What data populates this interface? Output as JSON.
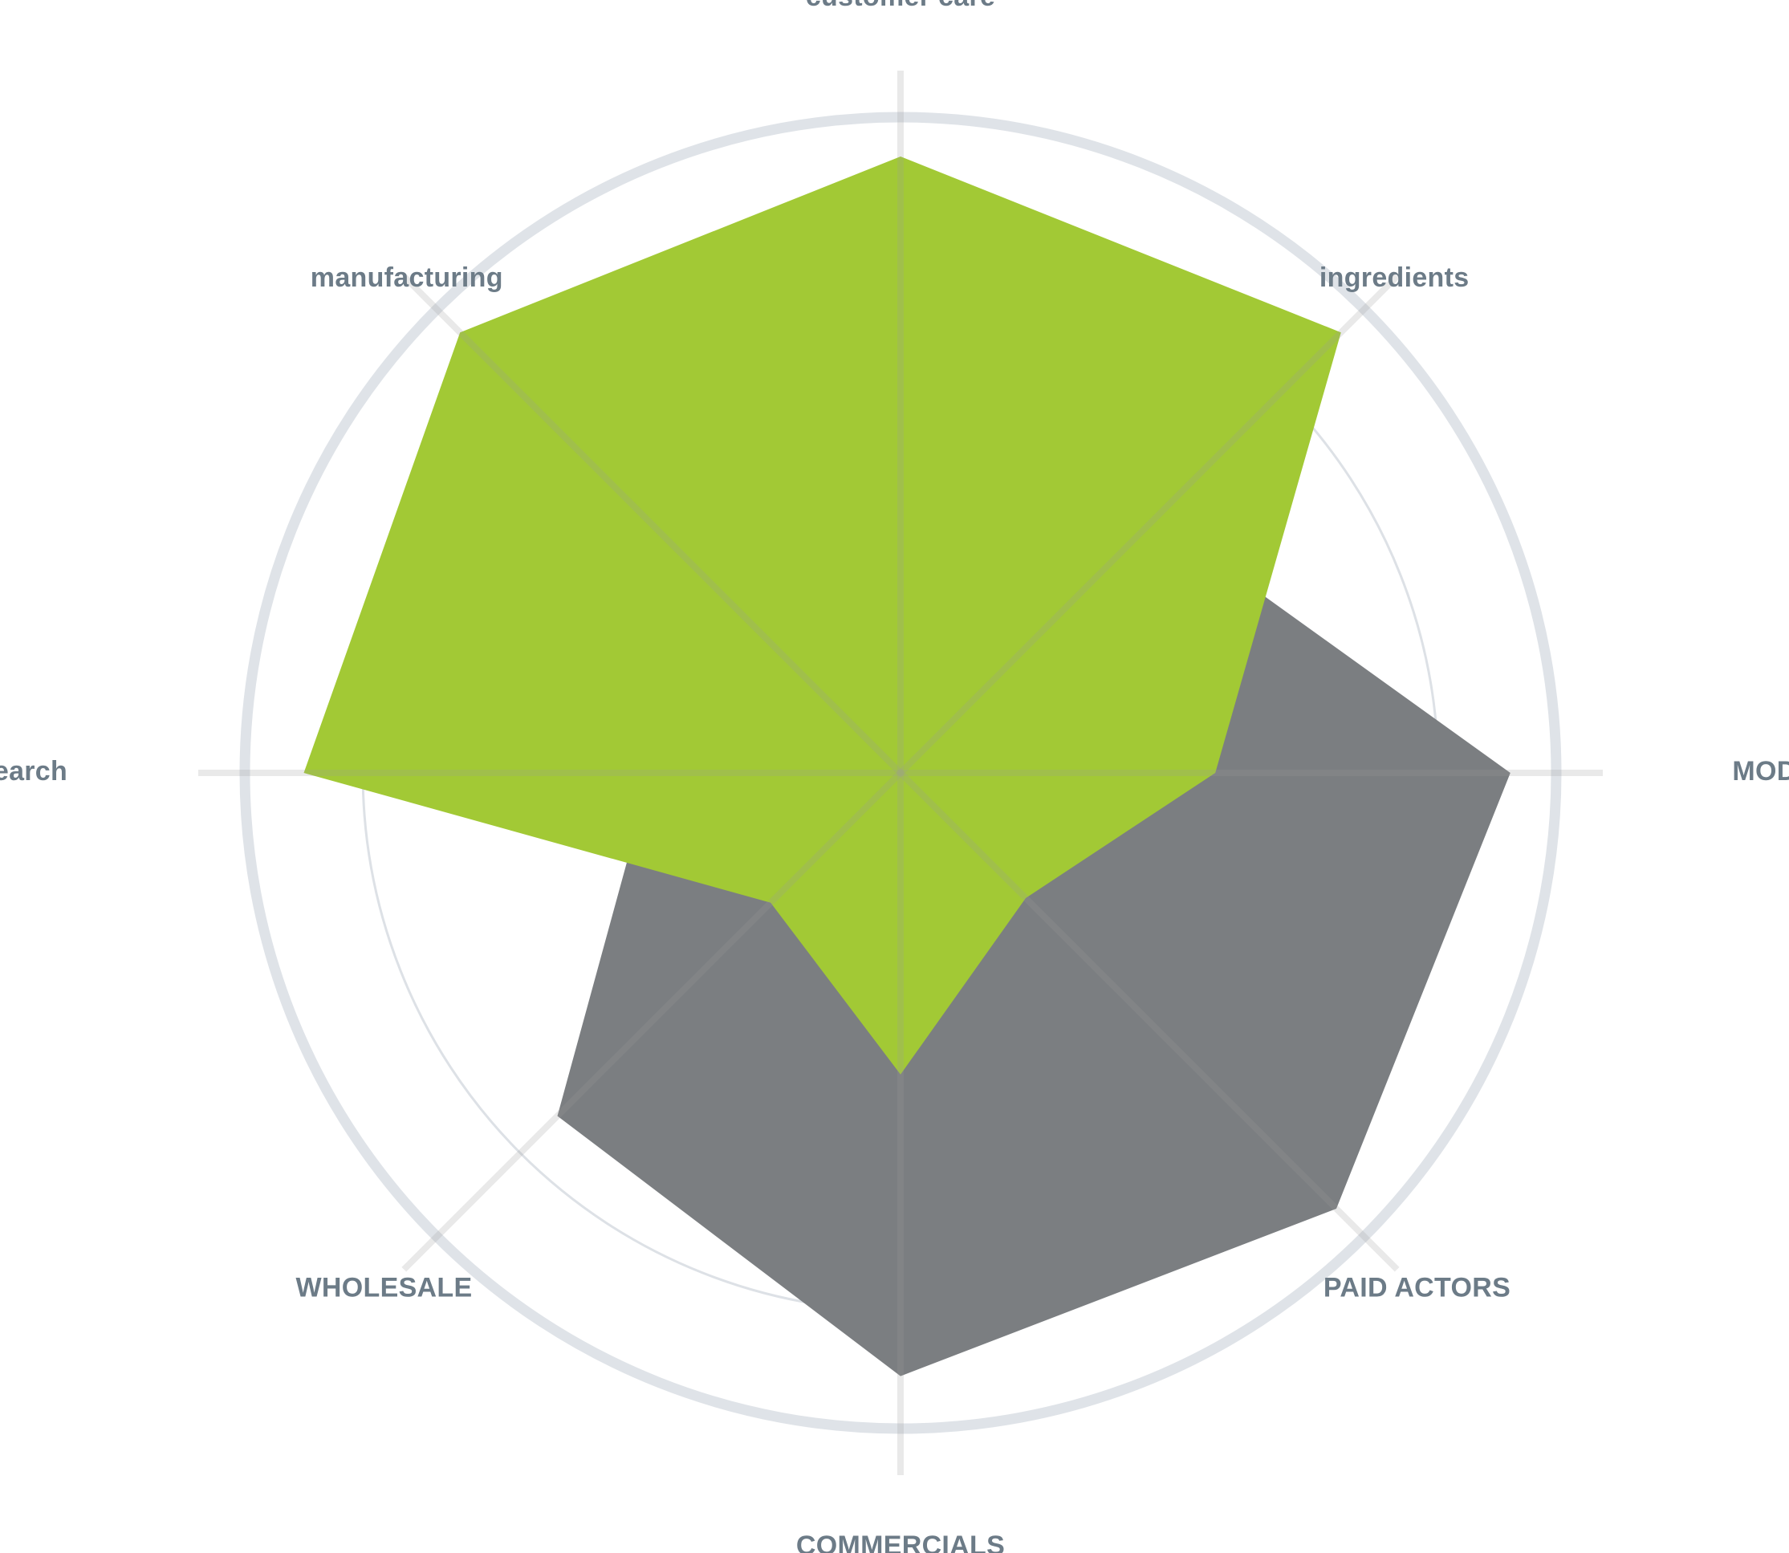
{
  "chart_data": {
    "type": "radar",
    "axes": [
      "customer care",
      "ingredients",
      "MODELS",
      "PAID ACTORS",
      "COMMERCIALS",
      "WHOLESALE",
      "research",
      "manufacturing"
    ],
    "rlim": [
      0,
      100
    ],
    "rings": [
      82,
      100
    ],
    "grid": true,
    "legend": "none",
    "series": [
      {
        "color": "#7b7e81",
        "values": [
          0,
          55,
          93,
          94,
          92,
          74,
          38,
          0
        ]
      },
      {
        "color": "#a2c935",
        "values": [
          94,
          95,
          48,
          27,
          46,
          28,
          91,
          95
        ]
      }
    ],
    "colors": {
      "label": "#6c7b87",
      "outer_ring": "#dfe3e8",
      "inner_ring": "#dde1e6",
      "axis_line": "#eaeaea"
    }
  }
}
